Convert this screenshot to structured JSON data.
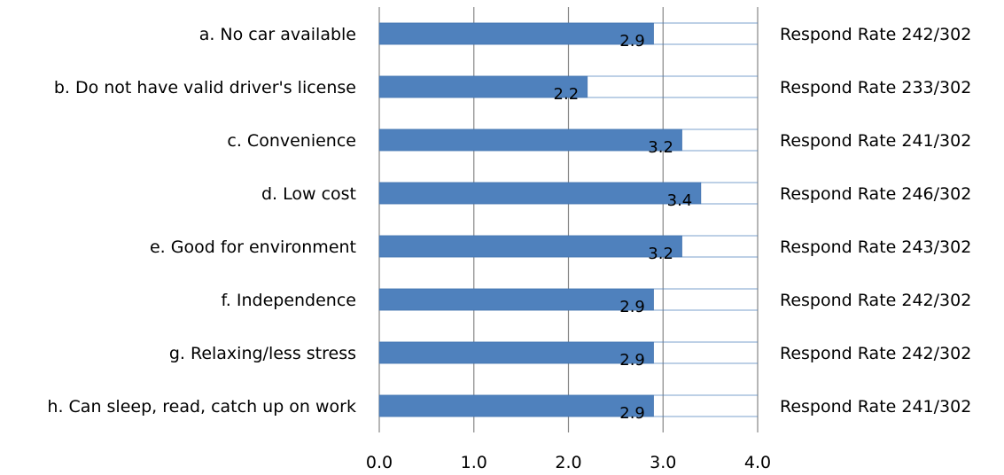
{
  "chart_data": {
    "type": "bar",
    "orientation": "horizontal",
    "categories": [
      "a. No car available",
      "b. Do not have valid driver's license",
      "c. Convenience",
      "d. Low cost",
      "e. Good for environment",
      "f. Independence",
      "g. Relaxing/less stress",
      "h. Can sleep, read, catch up on work"
    ],
    "values": [
      2.9,
      2.2,
      3.2,
      3.4,
      3.2,
      2.9,
      2.9,
      2.9
    ],
    "data_labels": [
      "2.9",
      "2.2",
      "3.2",
      "3.4",
      "3.2",
      "2.9",
      "2.9",
      "2.9"
    ],
    "annotations": [
      "Respond Rate 242/302",
      "Respond Rate 233/302",
      "Respond Rate 241/302",
      "Respond Rate 246/302",
      "Respond Rate 243/302",
      "Respond Rate 242/302",
      "Respond Rate 242/302",
      "Respond Rate 241/302"
    ],
    "xlim": [
      0,
      4
    ],
    "x_ticks": [
      "0.0",
      "1.0",
      "2.0",
      "3.0",
      "4.0"
    ],
    "grid": true,
    "bar_color": "#4F81BD",
    "title": "",
    "xlabel": "",
    "ylabel": ""
  }
}
